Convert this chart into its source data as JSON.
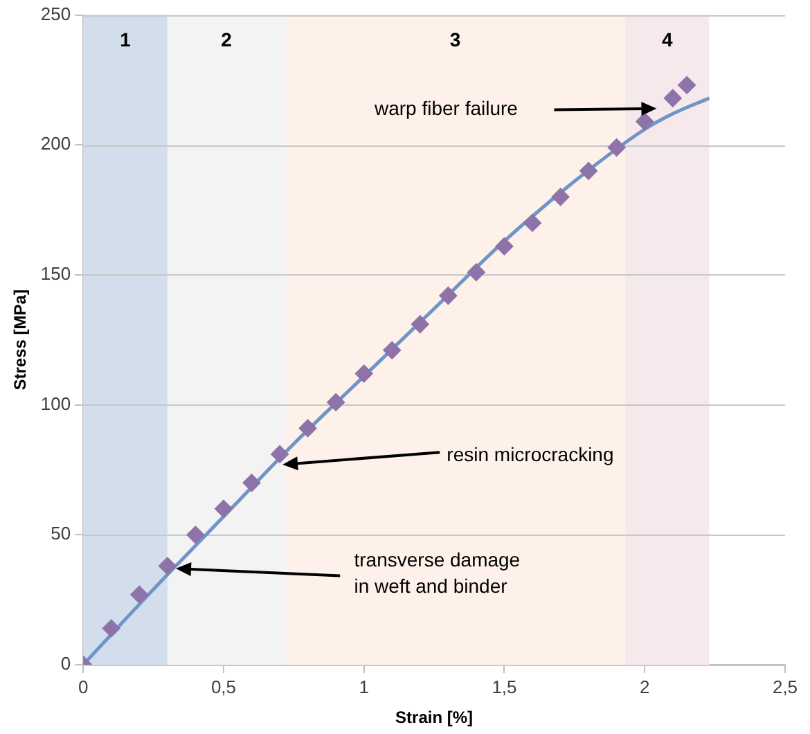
{
  "chart_data": {
    "type": "scatter",
    "xlabel": "Strain [%]",
    "ylabel": "Stress [MPa]",
    "xlim": [
      0,
      2.5
    ],
    "ylim": [
      0,
      250
    ],
    "xticks": [
      0,
      {
        "value": 0.5,
        "label": "0,5"
      },
      1,
      {
        "value": 1.5,
        "label": "1,5"
      },
      2,
      {
        "value": 2.5,
        "label": "2,5"
      }
    ],
    "yticks": [
      0,
      50,
      100,
      150,
      200,
      250
    ],
    "grid": "y",
    "legend": false,
    "series": [
      {
        "type": "line",
        "color": "#6f95c8",
        "marker": "none",
        "line_style": "solid",
        "x": [
          0,
          0.25,
          0.5,
          0.75,
          1.0,
          1.25,
          1.5,
          1.75,
          2.0,
          2.1,
          2.23
        ],
        "values": [
          0,
          29,
          57,
          85,
          111,
          137,
          163,
          186,
          206,
          212,
          218
        ]
      },
      {
        "type": "scatter",
        "color": "#8e73a8",
        "marker": "diamond",
        "x": [
          0,
          0.1,
          0.2,
          0.3,
          0.4,
          0.5,
          0.6,
          0.7,
          0.8,
          0.9,
          1.0,
          1.1,
          1.2,
          1.3,
          1.4,
          1.5,
          1.6,
          1.7,
          1.8,
          1.9,
          2.0,
          2.1,
          2.15
        ],
        "values": [
          0,
          14,
          27,
          38,
          50,
          60,
          70,
          81,
          91,
          101,
          112,
          121,
          131,
          142,
          151,
          161,
          170,
          180,
          190,
          199,
          209,
          218,
          223
        ]
      }
    ],
    "bands": [
      {
        "axis": "x",
        "from": 0,
        "to": 0.3,
        "label": "1",
        "color": "#d3deed"
      },
      {
        "axis": "x",
        "from": 0.3,
        "to": 0.72,
        "label": "2",
        "color": "#f3f3f3"
      },
      {
        "axis": "x",
        "from": 0.72,
        "to": 1.93,
        "label": "3",
        "color": "#fdf1e9"
      },
      {
        "axis": "x",
        "from": 1.93,
        "to": 2.23,
        "label": "4",
        "color": "#f6e9ec"
      }
    ],
    "annotations": [
      "warp fiber failure",
      {
        "text": "resin microcracking",
        "x": 0.71,
        "y": 77
      },
      {
        "text": "transverse damage\nin weft and binder",
        "x": 0.33,
        "y": 37
      }
    ]
  }
}
